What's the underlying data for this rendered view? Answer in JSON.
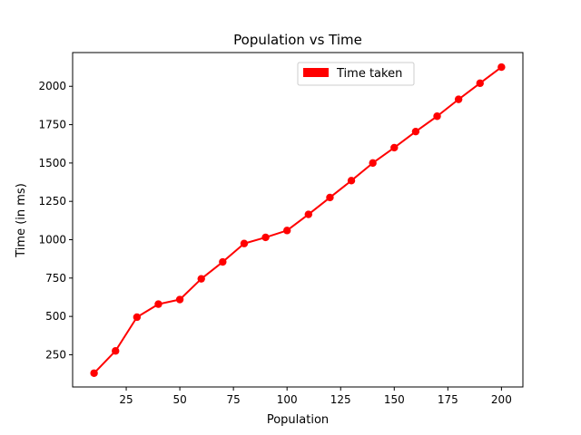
{
  "chart_data": {
    "type": "line",
    "title": "Population vs Time",
    "xlabel": "Population",
    "ylabel": "Time (in ms)",
    "xlim": [
      0,
      210
    ],
    "ylim": [
      40,
      2220
    ],
    "xticks": [
      25,
      50,
      75,
      100,
      125,
      150,
      175,
      200
    ],
    "yticks": [
      250,
      500,
      750,
      1000,
      1250,
      1500,
      1750,
      2000
    ],
    "grid": false,
    "legend_position": "top-right",
    "series": [
      {
        "name": "Time taken",
        "color": "#ff0000",
        "marker": "circle",
        "x": [
          10,
          20,
          30,
          40,
          50,
          60,
          70,
          80,
          90,
          100,
          110,
          120,
          130,
          140,
          150,
          160,
          170,
          180,
          190,
          200
        ],
        "y": [
          130,
          275,
          495,
          580,
          610,
          745,
          855,
          975,
          1015,
          1060,
          1165,
          1275,
          1385,
          1500,
          1600,
          1705,
          1805,
          1915,
          2020,
          2125
        ]
      }
    ]
  }
}
